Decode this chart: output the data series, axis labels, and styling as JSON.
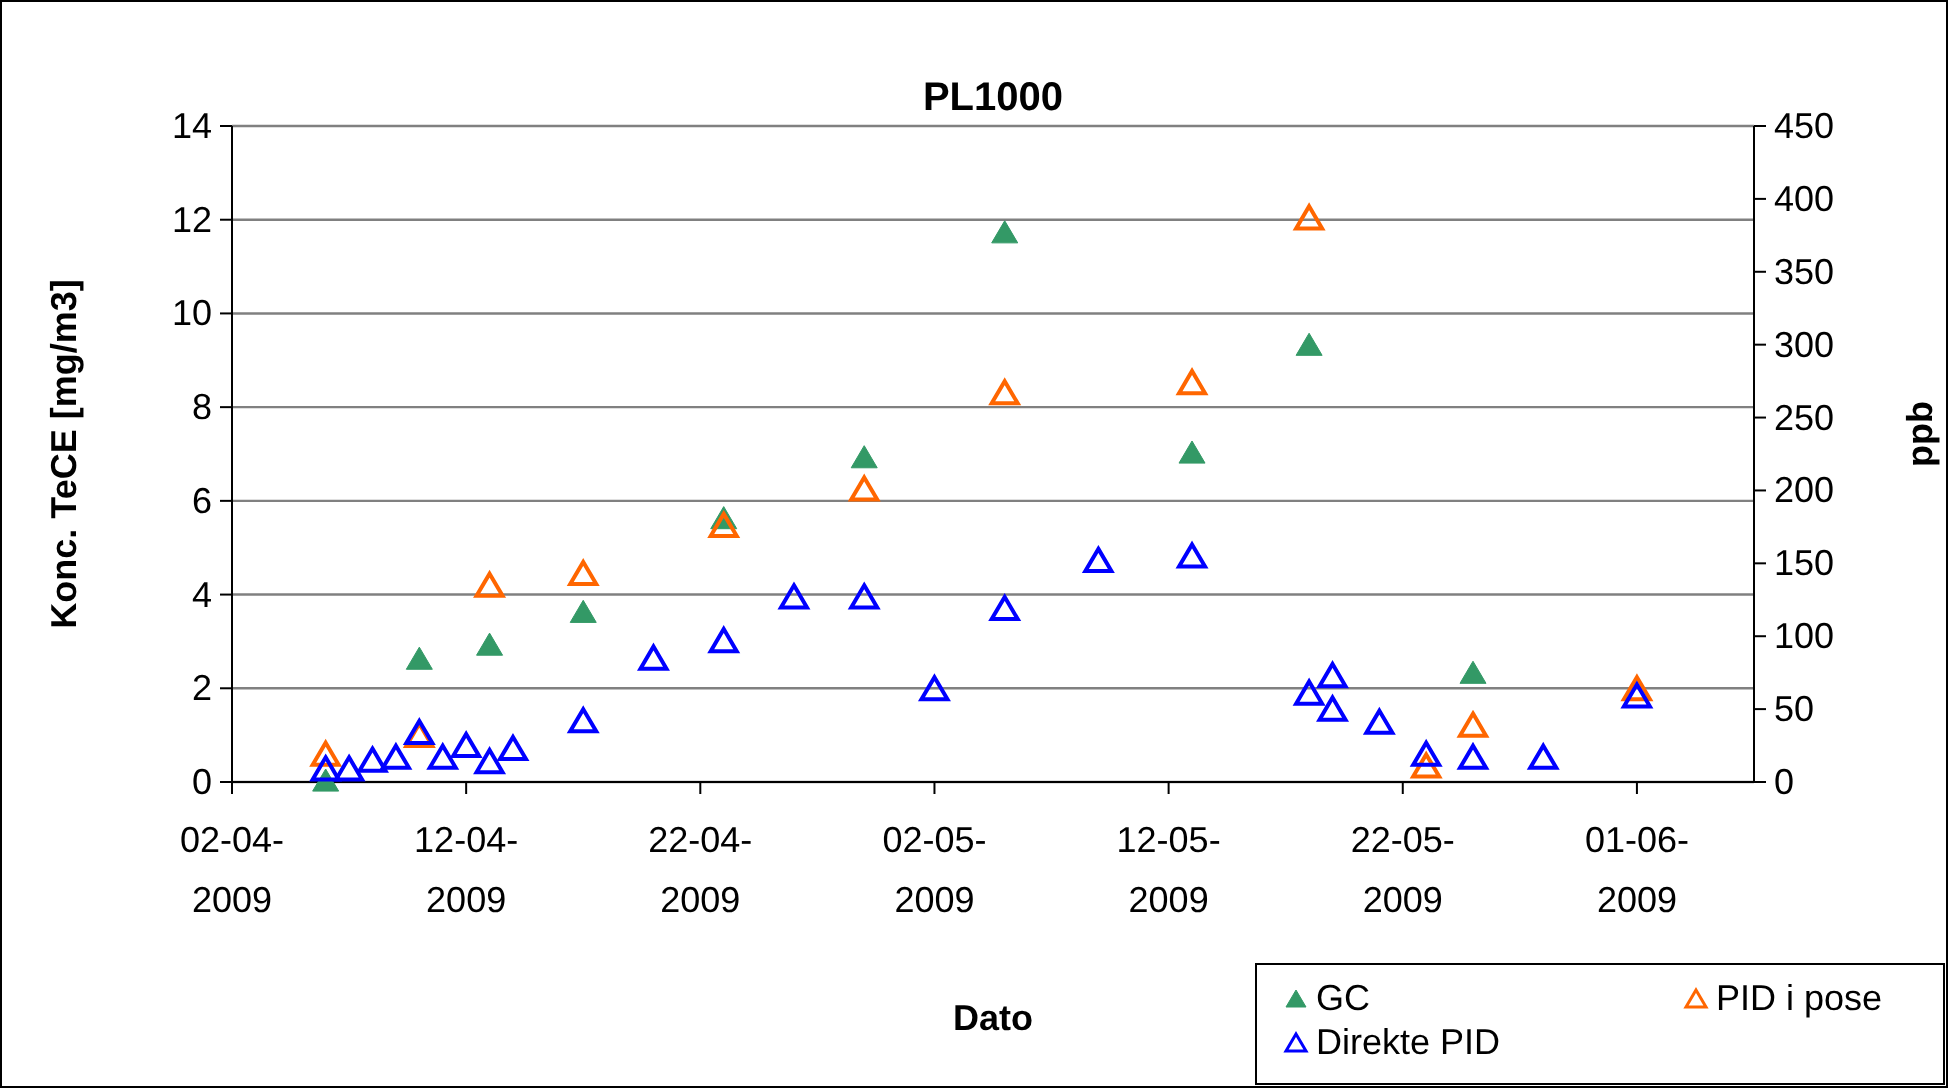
{
  "chart_data": {
    "type": "scatter",
    "title": "PL1000",
    "xlabel": "Dato",
    "ylabel": "Konc. TeCE [mg/m3]",
    "y2label": "ppb",
    "xlim": [
      "2009-04-02",
      "2009-06-06"
    ],
    "xticks": [
      {
        "value": "2009-04-02",
        "label": "02-04-2009"
      },
      {
        "value": "2009-04-12",
        "label": "12-04-2009"
      },
      {
        "value": "2009-04-22",
        "label": "22-04-2009"
      },
      {
        "value": "2009-05-02",
        "label": "02-05-2009"
      },
      {
        "value": "2009-05-12",
        "label": "12-05-2009"
      },
      {
        "value": "2009-05-22",
        "label": "22-05-2009"
      },
      {
        "value": "2009-06-01",
        "label": "01-06-2009"
      }
    ],
    "ylim": [
      0,
      14
    ],
    "yticks": [
      0,
      2,
      4,
      6,
      8,
      10,
      12,
      14
    ],
    "y2lim": [
      0,
      450
    ],
    "y2ticks": [
      0,
      50,
      100,
      150,
      200,
      250,
      300,
      350,
      400,
      450
    ],
    "grid": "y",
    "legend": "bottom right",
    "series": [
      {
        "name": "GC",
        "color": "#339966",
        "marker": "triangle",
        "x": [
          "2009-04-06",
          "2009-04-10",
          "2009-04-13",
          "2009-04-17",
          "2009-04-23",
          "2009-04-29",
          "2009-05-05",
          "2009-05-13",
          "2009-05-18",
          "2009-05-25"
        ],
        "values": [
          0,
          2.6,
          2.9,
          3.6,
          5.6,
          6.9,
          11.7,
          7.0,
          9.3,
          2.3
        ]
      },
      {
        "name": "PID i pose",
        "color": "#ff6600",
        "marker": "triangle",
        "axis": "y2",
        "x": [
          "2009-04-06",
          "2009-04-10",
          "2009-04-13",
          "2009-04-17",
          "2009-04-23",
          "2009-04-29",
          "2009-05-05",
          "2009-05-13",
          "2009-05-18",
          "2009-05-23",
          "2009-05-25",
          "2009-06-01"
        ],
        "values": [
          18,
          31,
          134,
          142,
          175,
          200,
          266,
          273,
          386,
          10,
          38,
          63
        ]
      },
      {
        "name": "Direkte PID",
        "color": "#0000ff",
        "marker": "triangle",
        "axis": "y2",
        "x": [
          "2009-04-06",
          "2009-04-07",
          "2009-04-08",
          "2009-04-09",
          "2009-04-10",
          "2009-04-11",
          "2009-04-12",
          "2009-04-13",
          "2009-04-14",
          "2009-04-17",
          "2009-04-20",
          "2009-04-23",
          "2009-04-26",
          "2009-04-29",
          "2009-05-02",
          "2009-05-05",
          "2009-05-09",
          "2009-05-13",
          "2009-05-18",
          "2009-05-19",
          "2009-05-19",
          "2009-05-21",
          "2009-05-23",
          "2009-05-25",
          "2009-05-28",
          "2009-06-01"
        ],
        "values": [
          8,
          8,
          14,
          16,
          33,
          16,
          24,
          13,
          22,
          41,
          84,
          96,
          126,
          126,
          63,
          118,
          151,
          154,
          60,
          72,
          49,
          40,
          18,
          16,
          16,
          58
        ]
      }
    ]
  }
}
